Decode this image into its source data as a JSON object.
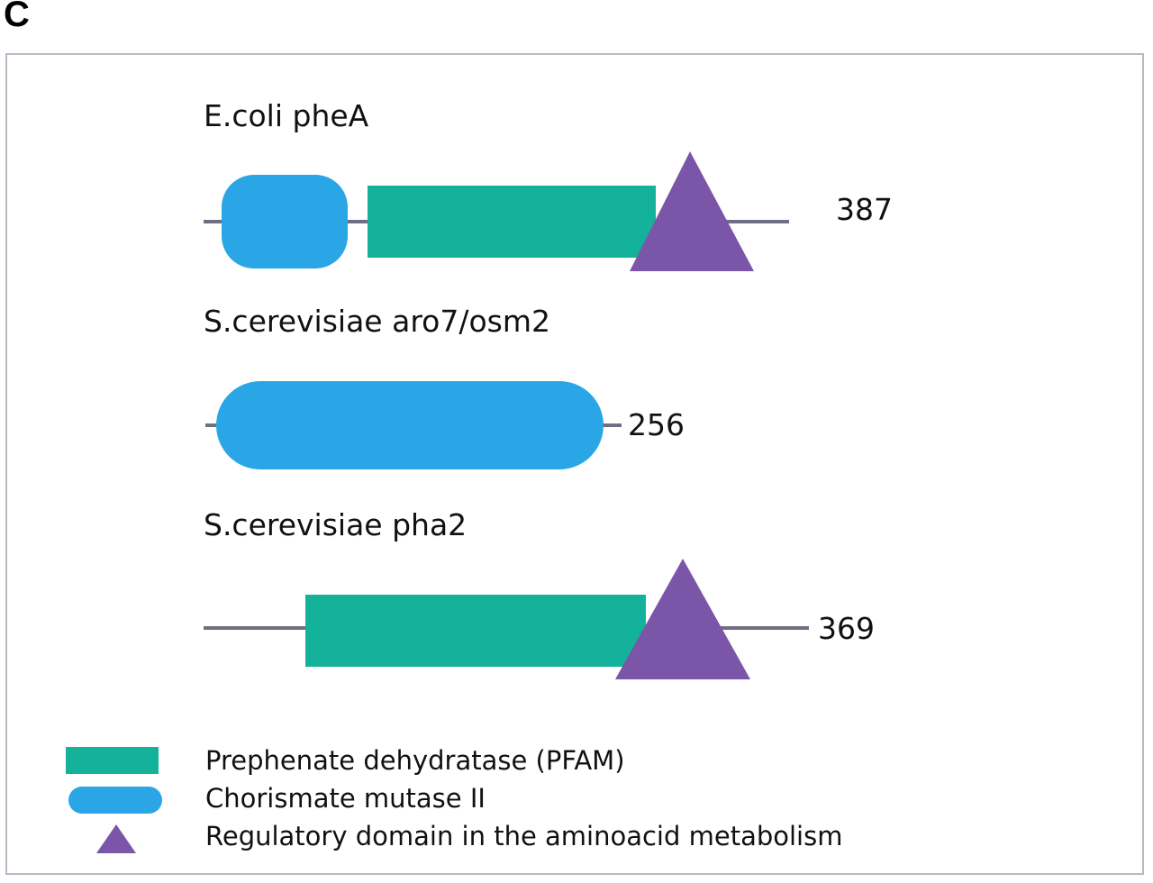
{
  "panel_letter": "C",
  "colors": {
    "prephenate_dehydratase": "#14b29b",
    "chorismate_mutase": "#2aa6e6",
    "regulatory_domain": "#7b56a8",
    "backbone": "#6d7083",
    "frame": "#b9b9c6"
  },
  "proteins": [
    {
      "name": "E.coli pheA",
      "length": "387",
      "domains": [
        "chorismate-mutase-ii",
        "prephenate-dehydratase",
        "regulatory-domain"
      ]
    },
    {
      "name": "S.cerevisiae aro7/osm2",
      "length": "256",
      "domains": [
        "chorismate-mutase-ii"
      ]
    },
    {
      "name": "S.cerevisiae pha2",
      "length": "369",
      "domains": [
        "prephenate-dehydratase",
        "regulatory-domain"
      ]
    }
  ],
  "legend": [
    {
      "shape": "rectangle",
      "label": "Prephenate dehydratase (PFAM)"
    },
    {
      "shape": "rounded-oval",
      "label": "Chorismate mutase II"
    },
    {
      "shape": "triangle",
      "label": "Regulatory domain in the aminoacid metabolism"
    }
  ]
}
